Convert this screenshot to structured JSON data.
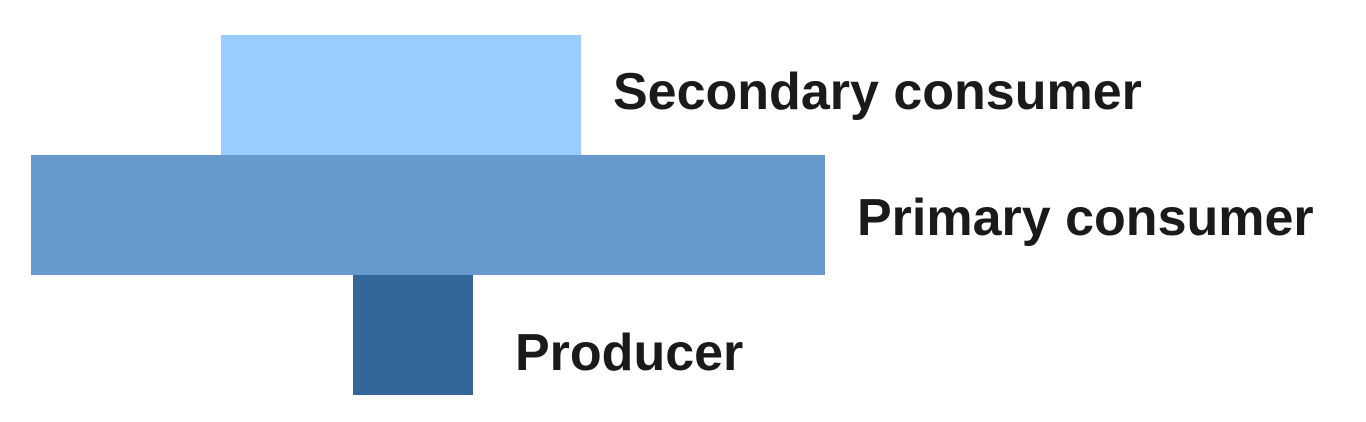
{
  "pyramid": {
    "levels": [
      {
        "key": "secondary",
        "label": "Secondary consumer",
        "color": "#99ccff"
      },
      {
        "key": "primary",
        "label": "Primary consumer",
        "color": "#6699cc"
      },
      {
        "key": "producer",
        "label": "Producer",
        "color": "#336699"
      }
    ]
  }
}
